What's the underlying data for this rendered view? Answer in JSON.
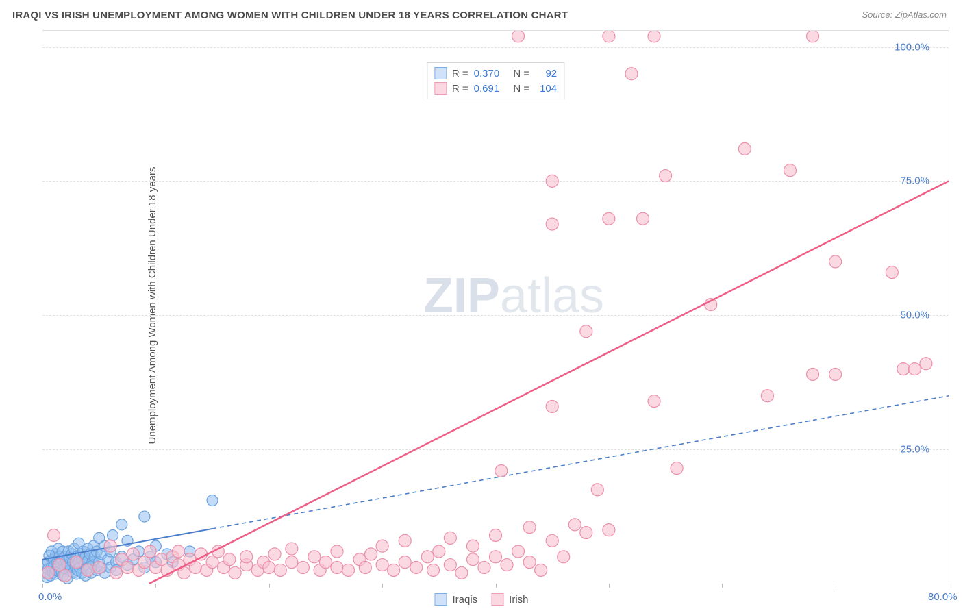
{
  "header": {
    "title": "IRAQI VS IRISH UNEMPLOYMENT AMONG WOMEN WITH CHILDREN UNDER 18 YEARS CORRELATION CHART",
    "source_prefix": "Source: ",
    "source_name": "ZipAtlas.com"
  },
  "axes": {
    "y_label": "Unemployment Among Women with Children Under 18 years",
    "x_min": 0,
    "x_max": 80,
    "y_min": 0,
    "y_max": 103,
    "x_ticks": [
      0,
      10,
      20,
      30,
      40,
      50,
      60,
      70,
      80
    ],
    "x_tick_labels": {
      "0": "0.0%",
      "80": "80.0%"
    },
    "y_ticks": [
      25,
      50,
      75,
      100
    ],
    "y_tick_labels": {
      "25": "25.0%",
      "50": "50.0%",
      "75": "75.0%",
      "100": "100.0%"
    },
    "grid_color": "#e2e2e2",
    "frame_color": "#e0e0e0",
    "tick_label_color": "#4a7ecb",
    "axis_label_color": "#555555"
  },
  "watermark": {
    "bold": "ZIP",
    "rest": "atlas"
  },
  "legend_top": {
    "r_label": "R =",
    "n_label": "N =",
    "rows": [
      {
        "swatch_fill": "#cfe2f9",
        "swatch_stroke": "#7eaee6",
        "r": "0.370",
        "n": "92"
      },
      {
        "swatch_fill": "#fbd8e1",
        "swatch_stroke": "#f19cb4",
        "r": "0.691",
        "n": "104"
      }
    ]
  },
  "legend_bottom": {
    "items": [
      {
        "swatch_fill": "#cfe2f9",
        "swatch_stroke": "#7eaee6",
        "label": "Iraqis"
      },
      {
        "swatch_fill": "#fbd8e1",
        "swatch_stroke": "#f19cb4",
        "label": "Irish"
      }
    ]
  },
  "series": [
    {
      "name": "Iraqis",
      "marker_fill": "rgba(147,192,240,0.55)",
      "marker_stroke": "#6aa2de",
      "marker_radius": 8,
      "trend_color": "#4a7ecb",
      "trend_solid_until_x": 15,
      "trend_dash": "6,5",
      "trend_width": 2,
      "trend_y_at_x0": 4.5,
      "trend_y_at_xmax": 35,
      "points": [
        [
          0.2,
          2.0
        ],
        [
          0.3,
          3.5
        ],
        [
          0.4,
          1.2
        ],
        [
          0.5,
          4.0
        ],
        [
          0.5,
          2.7
        ],
        [
          0.6,
          5.2
        ],
        [
          0.7,
          1.5
        ],
        [
          0.8,
          3.0
        ],
        [
          0.8,
          6.0
        ],
        [
          0.9,
          2.0
        ],
        [
          1.0,
          4.5
        ],
        [
          1.0,
          3.2
        ],
        [
          1.1,
          1.8
        ],
        [
          1.2,
          5.5
        ],
        [
          1.2,
          2.5
        ],
        [
          1.3,
          4.0
        ],
        [
          1.4,
          3.0
        ],
        [
          1.4,
          6.5
        ],
        [
          1.5,
          2.2
        ],
        [
          1.5,
          5.0
        ],
        [
          1.6,
          3.8
        ],
        [
          1.7,
          2.0
        ],
        [
          1.7,
          4.5
        ],
        [
          1.8,
          6.0
        ],
        [
          1.8,
          1.5
        ],
        [
          1.9,
          3.5
        ],
        [
          2.0,
          5.0
        ],
        [
          2.0,
          2.8
        ],
        [
          2.1,
          4.2
        ],
        [
          2.2,
          1.0
        ],
        [
          2.2,
          3.5
        ],
        [
          2.3,
          6.0
        ],
        [
          2.4,
          2.5
        ],
        [
          2.4,
          4.8
        ],
        [
          2.5,
          3.0
        ],
        [
          2.6,
          5.5
        ],
        [
          2.7,
          2.0
        ],
        [
          2.7,
          4.0
        ],
        [
          2.8,
          6.5
        ],
        [
          2.9,
          3.2
        ],
        [
          3.0,
          1.8
        ],
        [
          3.0,
          5.0
        ],
        [
          3.1,
          2.5
        ],
        [
          3.2,
          4.0
        ],
        [
          3.2,
          7.5
        ],
        [
          3.3,
          3.0
        ],
        [
          3.4,
          5.5
        ],
        [
          3.5,
          2.0
        ],
        [
          3.5,
          4.5
        ],
        [
          3.6,
          6.0
        ],
        [
          3.7,
          3.5
        ],
        [
          3.8,
          1.5
        ],
        [
          3.8,
          5.0
        ],
        [
          3.9,
          2.8
        ],
        [
          4.0,
          4.2
        ],
        [
          4.0,
          6.5
        ],
        [
          4.1,
          3.0
        ],
        [
          4.2,
          5.5
        ],
        [
          4.3,
          2.0
        ],
        [
          4.4,
          4.0
        ],
        [
          4.5,
          7.0
        ],
        [
          4.5,
          3.5
        ],
        [
          4.6,
          5.0
        ],
        [
          4.8,
          2.5
        ],
        [
          4.8,
          6.0
        ],
        [
          5.0,
          4.0
        ],
        [
          5.0,
          8.5
        ],
        [
          5.2,
          3.0
        ],
        [
          5.2,
          5.5
        ],
        [
          5.5,
          2.0
        ],
        [
          5.5,
          7.0
        ],
        [
          5.8,
          4.5
        ],
        [
          6.0,
          3.0
        ],
        [
          6.0,
          6.0
        ],
        [
          6.2,
          9.0
        ],
        [
          6.5,
          4.0
        ],
        [
          6.5,
          2.5
        ],
        [
          7.0,
          5.0
        ],
        [
          7.0,
          11.0
        ],
        [
          7.5,
          3.5
        ],
        [
          7.5,
          8.0
        ],
        [
          8.0,
          4.5
        ],
        [
          8.5,
          6.0
        ],
        [
          9.0,
          3.0
        ],
        [
          9.0,
          12.5
        ],
        [
          9.5,
          5.0
        ],
        [
          10.0,
          4.0
        ],
        [
          10.0,
          7.0
        ],
        [
          11.0,
          5.5
        ],
        [
          11.5,
          4.0
        ],
        [
          13.0,
          6.0
        ],
        [
          15.0,
          15.5
        ]
      ]
    },
    {
      "name": "Irish",
      "marker_fill": "rgba(248,192,206,0.6)",
      "marker_stroke": "#ec8fa9",
      "marker_radius": 9,
      "trend_color": "#ee5e87",
      "trend_dash": "",
      "trend_width": 2.5,
      "trend_y_at_x0": -10,
      "trend_y_at_xmax": 75,
      "points": [
        [
          0.5,
          2.0
        ],
        [
          1.0,
          9.0
        ],
        [
          1.5,
          3.5
        ],
        [
          2.0,
          1.5
        ],
        [
          3.0,
          4.0
        ],
        [
          4.0,
          2.5
        ],
        [
          5.0,
          3.0
        ],
        [
          6.0,
          7.0
        ],
        [
          6.5,
          2.0
        ],
        [
          7.0,
          4.5
        ],
        [
          7.5,
          3.0
        ],
        [
          8.0,
          5.5
        ],
        [
          8.5,
          2.5
        ],
        [
          9.0,
          4.0
        ],
        [
          9.5,
          6.0
        ],
        [
          10.0,
          3.0
        ],
        [
          10.5,
          4.5
        ],
        [
          11.0,
          2.5
        ],
        [
          11.5,
          5.0
        ],
        [
          12.0,
          3.5
        ],
        [
          12.0,
          6.0
        ],
        [
          12.5,
          2.0
        ],
        [
          13.0,
          4.5
        ],
        [
          13.5,
          3.0
        ],
        [
          14.0,
          5.5
        ],
        [
          14.5,
          2.5
        ],
        [
          15.0,
          4.0
        ],
        [
          15.5,
          6.0
        ],
        [
          16.0,
          3.0
        ],
        [
          16.5,
          4.5
        ],
        [
          17.0,
          2.0
        ],
        [
          18.0,
          3.5
        ],
        [
          18.0,
          5.0
        ],
        [
          19.0,
          2.5
        ],
        [
          19.5,
          4.0
        ],
        [
          20.0,
          3.0
        ],
        [
          20.5,
          5.5
        ],
        [
          21.0,
          2.5
        ],
        [
          22.0,
          4.0
        ],
        [
          22.0,
          6.5
        ],
        [
          23.0,
          3.0
        ],
        [
          24.0,
          5.0
        ],
        [
          24.5,
          2.5
        ],
        [
          25.0,
          4.0
        ],
        [
          26.0,
          3.0
        ],
        [
          26.0,
          6.0
        ],
        [
          27.0,
          2.5
        ],
        [
          28.0,
          4.5
        ],
        [
          28.5,
          3.0
        ],
        [
          29.0,
          5.5
        ],
        [
          30.0,
          3.5
        ],
        [
          30.0,
          7.0
        ],
        [
          31.0,
          2.5
        ],
        [
          32.0,
          4.0
        ],
        [
          32.0,
          8.0
        ],
        [
          33.0,
          3.0
        ],
        [
          34.0,
          5.0
        ],
        [
          34.5,
          2.5
        ],
        [
          35.0,
          6.0
        ],
        [
          36.0,
          3.5
        ],
        [
          36.0,
          8.5
        ],
        [
          37.0,
          2.0
        ],
        [
          38.0,
          4.5
        ],
        [
          38.0,
          7.0
        ],
        [
          39.0,
          3.0
        ],
        [
          40.0,
          5.0
        ],
        [
          40.0,
          9.0
        ],
        [
          40.5,
          21.0
        ],
        [
          41.0,
          3.5
        ],
        [
          42.0,
          6.0
        ],
        [
          42.0,
          102.0
        ],
        [
          43.0,
          4.0
        ],
        [
          43.0,
          10.5
        ],
        [
          44.0,
          2.5
        ],
        [
          45.0,
          8.0
        ],
        [
          45.0,
          33.0
        ],
        [
          45.0,
          67.0
        ],
        [
          45.0,
          75.0
        ],
        [
          46.0,
          5.0
        ],
        [
          47.0,
          11.0
        ],
        [
          48.0,
          9.5
        ],
        [
          48.0,
          47.0
        ],
        [
          49.0,
          17.5
        ],
        [
          50.0,
          68.0
        ],
        [
          50.0,
          102.0
        ],
        [
          50.0,
          10.0
        ],
        [
          52.0,
          95.0
        ],
        [
          53.0,
          68.0
        ],
        [
          54.0,
          102.0
        ],
        [
          54.0,
          34.0
        ],
        [
          55.0,
          76.0
        ],
        [
          56.0,
          21.5
        ],
        [
          59.0,
          52.0
        ],
        [
          62.0,
          81.0
        ],
        [
          64.0,
          35.0
        ],
        [
          66.0,
          77.0
        ],
        [
          68.0,
          102.0
        ],
        [
          68.0,
          39.0
        ],
        [
          70.0,
          39.0
        ],
        [
          76.0,
          40.0
        ],
        [
          77.0,
          40.0
        ],
        [
          78.0,
          41.0
        ],
        [
          75.0,
          58.0
        ],
        [
          70.0,
          60.0
        ]
      ]
    }
  ]
}
